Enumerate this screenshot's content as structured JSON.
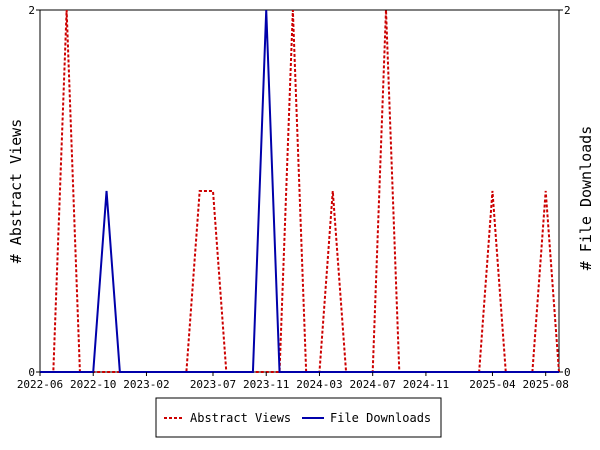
{
  "chart_data": {
    "type": "line",
    "x_unit": "month",
    "x_ticks": [
      "2022-06",
      "2022-10",
      "2023-02",
      "2023-07",
      "2023-11",
      "2024-03",
      "2024-07",
      "2024-11",
      "2025-04",
      "2025-08"
    ],
    "xlim": [
      "2022-06",
      "2025-09"
    ],
    "y_left_label": "# Abstract Views",
    "y_right_label": "# File Downloads",
    "ylim_left": [
      0,
      2
    ],
    "ylim_right": [
      0,
      2
    ],
    "y_ticks_left": [
      "0",
      "2"
    ],
    "y_ticks_right": [
      "0",
      "2"
    ],
    "grid": false,
    "legend_position": "bottom",
    "series": [
      {
        "name": "Abstract Views",
        "axis": "left",
        "color": "#cc0000",
        "style": "dashed",
        "points": [
          [
            "2022-06",
            0
          ],
          [
            "2022-07",
            0
          ],
          [
            "2022-08",
            2
          ],
          [
            "2022-09",
            0
          ],
          [
            "2022-10",
            0
          ],
          [
            "2022-11",
            0
          ],
          [
            "2022-12",
            0
          ],
          [
            "2023-01",
            0
          ],
          [
            "2023-02",
            0
          ],
          [
            "2023-03",
            0
          ],
          [
            "2023-04",
            0
          ],
          [
            "2023-05",
            0
          ],
          [
            "2023-06",
            1
          ],
          [
            "2023-07",
            1
          ],
          [
            "2023-08",
            0
          ],
          [
            "2023-09",
            0
          ],
          [
            "2023-10",
            0
          ],
          [
            "2023-11",
            0
          ],
          [
            "2023-12",
            0
          ],
          [
            "2024-01",
            2
          ],
          [
            "2024-02",
            0
          ],
          [
            "2024-03",
            0
          ],
          [
            "2024-04",
            1
          ],
          [
            "2024-05",
            0
          ],
          [
            "2024-06",
            0
          ],
          [
            "2024-07",
            0
          ],
          [
            "2024-08",
            2
          ],
          [
            "2024-09",
            0
          ],
          [
            "2024-10",
            0
          ],
          [
            "2024-11",
            0
          ],
          [
            "2024-12",
            0
          ],
          [
            "2025-01",
            0
          ],
          [
            "2025-02",
            0
          ],
          [
            "2025-03",
            0
          ],
          [
            "2025-04",
            1
          ],
          [
            "2025-05",
            0
          ],
          [
            "2025-06",
            0
          ],
          [
            "2025-07",
            0
          ],
          [
            "2025-08",
            1
          ],
          [
            "2025-09",
            0
          ]
        ]
      },
      {
        "name": "File Downloads",
        "axis": "right",
        "color": "#0000aa",
        "style": "solid",
        "points": [
          [
            "2022-06",
            0
          ],
          [
            "2022-07",
            0
          ],
          [
            "2022-08",
            0
          ],
          [
            "2022-09",
            0
          ],
          [
            "2022-10",
            0
          ],
          [
            "2022-11",
            1
          ],
          [
            "2022-12",
            0
          ],
          [
            "2023-01",
            0
          ],
          [
            "2023-02",
            0
          ],
          [
            "2023-03",
            0
          ],
          [
            "2023-04",
            0
          ],
          [
            "2023-05",
            0
          ],
          [
            "2023-06",
            0
          ],
          [
            "2023-07",
            0
          ],
          [
            "2023-08",
            0
          ],
          [
            "2023-09",
            0
          ],
          [
            "2023-10",
            0
          ],
          [
            "2023-11",
            2
          ],
          [
            "2023-12",
            0
          ],
          [
            "2024-01",
            0
          ],
          [
            "2024-02",
            0
          ],
          [
            "2024-03",
            0
          ],
          [
            "2024-04",
            0
          ],
          [
            "2024-05",
            0
          ],
          [
            "2024-06",
            0
          ],
          [
            "2024-07",
            0
          ],
          [
            "2024-08",
            0
          ],
          [
            "2024-09",
            0
          ],
          [
            "2024-10",
            0
          ],
          [
            "2024-11",
            0
          ],
          [
            "2024-12",
            0
          ],
          [
            "2025-01",
            0
          ],
          [
            "2025-02",
            0
          ],
          [
            "2025-03",
            0
          ],
          [
            "2025-04",
            0
          ],
          [
            "2025-05",
            0
          ],
          [
            "2025-06",
            0
          ],
          [
            "2025-07",
            0
          ],
          [
            "2025-08",
            0
          ],
          [
            "2025-09",
            0
          ]
        ]
      }
    ]
  }
}
